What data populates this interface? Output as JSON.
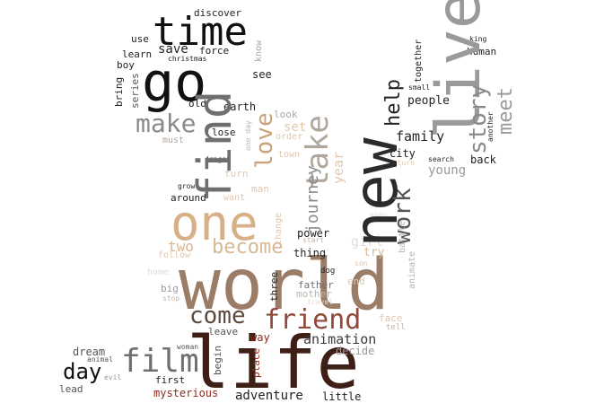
{
  "words": [
    {
      "id": "world",
      "text": "world",
      "color": "#9b7c67"
    },
    {
      "id": "life",
      "text": "life",
      "color": "#3e1f16"
    },
    {
      "id": "new",
      "text": "new",
      "color": "#2b2b2b"
    },
    {
      "id": "live",
      "text": "live",
      "color": "#9a9a9a"
    },
    {
      "id": "one",
      "text": "one",
      "color": "#d8b088"
    },
    {
      "id": "find",
      "text": "find",
      "color": "#6f6f6f"
    },
    {
      "id": "go",
      "text": "go",
      "color": "#111111"
    },
    {
      "id": "time",
      "text": "time",
      "color": "#111111"
    },
    {
      "id": "take",
      "text": "take",
      "color": "#b0a79c"
    },
    {
      "id": "friend",
      "text": "friend",
      "color": "#8f4a3c"
    },
    {
      "id": "make",
      "text": "make",
      "color": "#8a8a8a"
    },
    {
      "id": "love",
      "text": "love",
      "color": "#c8a47c"
    },
    {
      "id": "film",
      "text": "film",
      "color": "#6f6f6f"
    },
    {
      "id": "story",
      "text": "story",
      "color": "#8a8a8a"
    },
    {
      "id": "come",
      "text": "come",
      "color": "#5c4a3e"
    },
    {
      "id": "become",
      "text": "become",
      "color": "#d8b794"
    },
    {
      "id": "work",
      "text": "work",
      "color": "#555555"
    },
    {
      "id": "help",
      "text": "help",
      "color": "#222222"
    },
    {
      "id": "meet",
      "text": "meet",
      "color": "#9a9a9a"
    },
    {
      "id": "day",
      "text": "day",
      "color": "#111111"
    },
    {
      "id": "animation",
      "text": "animation",
      "color": "#3a3a3a"
    },
    {
      "id": "family",
      "text": "family",
      "color": "#222222"
    },
    {
      "id": "girl",
      "text": "girl",
      "color": "#e4dcd5"
    },
    {
      "id": "journey",
      "text": "journey",
      "color": "#8a8a8a"
    },
    {
      "id": "year",
      "text": "year",
      "color": "#e0c7ad"
    },
    {
      "id": "young",
      "text": "young",
      "color": "#9a9a9a"
    },
    {
      "id": "adventure",
      "text": "adventure",
      "color": "#222222"
    },
    {
      "id": "two",
      "text": "two",
      "color": "#d8b794"
    },
    {
      "id": "save",
      "text": "save",
      "color": "#222222"
    },
    {
      "id": "people",
      "text": "people",
      "color": "#222222"
    },
    {
      "id": "back",
      "text": "back",
      "color": "#222222"
    },
    {
      "id": "try",
      "text": "try",
      "color": "#d8b794"
    },
    {
      "id": "power",
      "text": "power",
      "color": "#222222"
    },
    {
      "id": "thing",
      "text": "thing",
      "color": "#222222"
    },
    {
      "id": "city",
      "text": "city",
      "color": "#222222"
    },
    {
      "id": "three",
      "text": "three",
      "color": "#222222"
    },
    {
      "id": "mysterious",
      "text": "mysterious",
      "color": "#8f2a1c"
    },
    {
      "id": "way",
      "text": "way",
      "color": "#8f2a1c"
    },
    {
      "id": "decide",
      "text": "decide",
      "color": "#9a9a9a"
    },
    {
      "id": "dream",
      "text": "dream",
      "color": "#555555"
    },
    {
      "id": "lead",
      "text": "lead",
      "color": "#555555"
    },
    {
      "id": "first",
      "text": "first",
      "color": "#222222"
    },
    {
      "id": "leave",
      "text": "leave",
      "color": "#555555"
    },
    {
      "id": "little",
      "text": "little",
      "color": "#222222"
    },
    {
      "id": "around",
      "text": "around",
      "color": "#222222"
    },
    {
      "id": "father",
      "text": "father",
      "color": "#6f6f6f"
    },
    {
      "id": "mother",
      "text": "mother",
      "color": "#bfb3a8"
    },
    {
      "id": "big",
      "text": "big",
      "color": "#9a9a9a"
    },
    {
      "id": "follow",
      "text": "follow",
      "color": "#e0c7ad"
    },
    {
      "id": "set",
      "text": "set",
      "color": "#e0c7ad"
    },
    {
      "id": "look",
      "text": "look",
      "color": "#b0a79c"
    },
    {
      "id": "lose",
      "text": "lose",
      "color": "#222222"
    },
    {
      "id": "earth",
      "text": "earth",
      "color": "#222222"
    },
    {
      "id": "old",
      "text": "old",
      "color": "#222222"
    },
    {
      "id": "must",
      "text": "must",
      "color": "#b0a79c"
    },
    {
      "id": "see",
      "text": "see",
      "color": "#222222"
    },
    {
      "id": "force",
      "text": "force",
      "color": "#222222"
    },
    {
      "id": "discover",
      "text": "discover",
      "color": "#222222"
    },
    {
      "id": "use",
      "text": "use",
      "color": "#222222"
    },
    {
      "id": "learn",
      "text": "learn",
      "color": "#222222"
    },
    {
      "id": "boy",
      "text": "boy",
      "color": "#222222"
    },
    {
      "id": "christmas",
      "text": "christmas",
      "color": "#222222"
    },
    {
      "id": "bring",
      "text": "bring",
      "color": "#222222"
    },
    {
      "id": "series",
      "text": "series",
      "color": "#555555"
    },
    {
      "id": "know",
      "text": "know",
      "color": "#b0a79c"
    },
    {
      "id": "together",
      "text": "together",
      "color": "#222222"
    },
    {
      "id": "king",
      "text": "king",
      "color": "#222222"
    },
    {
      "id": "human",
      "text": "human",
      "color": "#222222"
    },
    {
      "id": "small",
      "text": "small",
      "color": "#222222"
    },
    {
      "id": "another",
      "text": "another",
      "color": "#222222"
    },
    {
      "id": "search",
      "text": "search",
      "color": "#222222"
    },
    {
      "id": "return",
      "text": "return",
      "color": "#e0c7ad"
    },
    {
      "id": "town",
      "text": "town",
      "color": "#e0c7ad"
    },
    {
      "id": "order",
      "text": "order",
      "color": "#e0c7ad"
    },
    {
      "id": "turn",
      "text": "turn",
      "color": "#e0c7ad"
    },
    {
      "id": "dragon",
      "text": "dragon",
      "color": "#222222"
    },
    {
      "id": "grow",
      "text": "grow",
      "color": "#222222"
    },
    {
      "id": "want",
      "text": "want",
      "color": "#e0c7ad"
    },
    {
      "id": "man",
      "text": "man",
      "color": "#e0c7ad"
    },
    {
      "id": "change",
      "text": "change",
      "color": "#e0c7ad"
    },
    {
      "id": "start",
      "text": "start",
      "color": "#bfb3a8"
    },
    {
      "id": "battle",
      "text": "battle",
      "color": "#bfb3a8"
    },
    {
      "id": "dog",
      "text": "dog",
      "color": "#222222"
    },
    {
      "id": "end",
      "text": "end",
      "color": "#e0c7ad"
    },
    {
      "id": "animate",
      "text": "animate",
      "color": "#bfb3a8"
    },
    {
      "id": "son",
      "text": "son",
      "color": "#e0c7ad"
    },
    {
      "id": "home",
      "text": "home",
      "color": "#e4dcd5"
    },
    {
      "id": "stop",
      "text": "stop",
      "color": "#bfb3a8"
    },
    {
      "id": "travel",
      "text": "travel",
      "color": "#e4dcd5"
    },
    {
      "id": "face",
      "text": "face",
      "color": "#e0c7ad"
    },
    {
      "id": "tell",
      "text": "tell",
      "color": "#bfb3a8"
    },
    {
      "id": "place",
      "text": "place",
      "color": "#8f2a1c"
    },
    {
      "id": "begin",
      "text": "begin",
      "color": "#555555"
    },
    {
      "id": "woman",
      "text": "woman",
      "color": "#555555"
    },
    {
      "id": "animal",
      "text": "animal",
      "color": "#555555"
    },
    {
      "id": "evil",
      "text": "evil",
      "color": "#9a9a9a"
    },
    {
      "id": "one_day",
      "text": "one day",
      "color": "#bfb3a8"
    },
    {
      "id": "open",
      "text": "open",
      "color": "#e4dcd5"
    }
  ]
}
